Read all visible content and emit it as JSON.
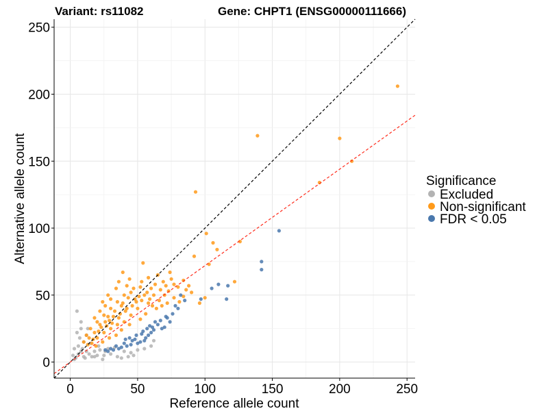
{
  "chart_data": {
    "type": "scatter",
    "title_left": "Variant: rs11082",
    "title_right": "Gene: CHPT1 (ENSG00000111666)",
    "xlabel": "Reference allele count",
    "ylabel": "Alternative allele count",
    "xlim": [
      -12,
      256
    ],
    "ylim": [
      -12,
      256
    ],
    "xticks": [
      0,
      50,
      100,
      150,
      200,
      250
    ],
    "yticks": [
      0,
      50,
      100,
      150,
      200,
      250
    ],
    "grid": true,
    "legend": {
      "title": "Significance",
      "position": "right",
      "entries": [
        {
          "label": "Excluded",
          "color": "#b3b3b3"
        },
        {
          "label": "Non-significant",
          "color": "#ff9a1a"
        },
        {
          "label": "FDR < 0.05",
          "color": "#4a78ad"
        }
      ]
    },
    "reference_lines": [
      {
        "name": "identity",
        "slope": 1.0,
        "intercept": 0,
        "color": "#000000",
        "dash": "dashed"
      },
      {
        "name": "fit",
        "slope": 0.72,
        "intercept": 0,
        "color": "#ff2a1a",
        "dash": "dashed"
      }
    ],
    "series": [
      {
        "name": "Excluded",
        "color": "#b3b3b3",
        "points": [
          [
            5,
            38
          ],
          [
            8,
            8
          ],
          [
            4,
            3
          ],
          [
            6,
            6
          ],
          [
            3,
            2
          ],
          [
            10,
            4
          ],
          [
            2,
            5
          ],
          [
            12,
            20
          ],
          [
            8,
            25
          ],
          [
            14,
            6
          ],
          [
            20,
            5
          ],
          [
            25,
            5
          ],
          [
            30,
            6
          ],
          [
            35,
            4
          ],
          [
            40,
            8
          ],
          [
            45,
            7
          ],
          [
            50,
            9
          ],
          [
            18,
            8
          ],
          [
            22,
            9
          ],
          [
            10,
            15
          ],
          [
            15,
            14
          ],
          [
            6,
            12
          ],
          [
            9,
            10
          ],
          [
            28,
            10
          ],
          [
            33,
            11
          ],
          [
            11,
            3
          ],
          [
            16,
            4
          ],
          [
            7,
            18
          ],
          [
            13,
            25
          ],
          [
            24,
            2
          ],
          [
            38,
            3
          ],
          [
            43,
            4
          ],
          [
            55,
            10
          ],
          [
            60,
            12
          ],
          [
            62,
            16
          ],
          [
            5,
            22
          ],
          [
            8,
            30
          ],
          [
            12,
            8
          ],
          [
            18,
            4
          ],
          [
            3,
            10
          ],
          [
            26,
            8
          ],
          [
            21,
            12
          ],
          [
            47,
            5
          ]
        ]
      },
      {
        "name": "Non-significant",
        "color": "#ff9a1a",
        "points": [
          [
            243,
            206
          ],
          [
            200,
            167
          ],
          [
            209,
            150
          ],
          [
            139,
            169
          ],
          [
            185,
            134
          ],
          [
            93,
            127
          ],
          [
            126,
            90
          ],
          [
            101,
            96
          ],
          [
            92,
            79
          ],
          [
            106,
            89
          ],
          [
            109,
            84
          ],
          [
            103,
            73
          ],
          [
            54,
            74
          ],
          [
            84,
            49
          ],
          [
            122,
            60
          ],
          [
            44,
            62
          ],
          [
            39,
            67
          ],
          [
            65,
            65
          ],
          [
            60,
            55
          ],
          [
            42,
            57
          ],
          [
            74,
            67
          ],
          [
            63,
            58
          ],
          [
            52,
            56
          ],
          [
            45,
            52
          ],
          [
            40,
            50
          ],
          [
            35,
            45
          ],
          [
            30,
            40
          ],
          [
            25,
            35
          ],
          [
            20,
            30
          ],
          [
            15,
            25
          ],
          [
            12,
            20
          ],
          [
            10,
            15
          ],
          [
            38,
            42
          ],
          [
            48,
            47
          ],
          [
            28,
            34
          ],
          [
            22,
            28
          ],
          [
            18,
            22
          ],
          [
            33,
            38
          ],
          [
            55,
            50
          ],
          [
            58,
            44
          ],
          [
            70,
            50
          ],
          [
            68,
            42
          ],
          [
            50,
            40
          ],
          [
            45,
            35
          ],
          [
            40,
            30
          ],
          [
            35,
            28
          ],
          [
            30,
            25
          ],
          [
            25,
            22
          ],
          [
            20,
            18
          ],
          [
            16,
            14
          ],
          [
            14,
            18
          ],
          [
            26,
            30
          ],
          [
            32,
            34
          ],
          [
            36,
            33
          ],
          [
            42,
            40
          ],
          [
            46,
            42
          ],
          [
            53,
            46
          ],
          [
            57,
            52
          ],
          [
            62,
            50
          ],
          [
            66,
            46
          ],
          [
            72,
            44
          ],
          [
            77,
            48
          ],
          [
            81,
            45
          ],
          [
            86,
            54
          ],
          [
            88,
            57
          ],
          [
            77,
            58
          ],
          [
            73,
            53
          ],
          [
            69,
            60
          ],
          [
            64,
            40
          ],
          [
            56,
            36
          ],
          [
            52,
            32
          ],
          [
            44,
            28
          ],
          [
            38,
            24
          ],
          [
            34,
            20
          ],
          [
            29,
            18
          ],
          [
            24,
            15
          ],
          [
            19,
            12
          ],
          [
            17,
            17
          ],
          [
            13,
            13
          ],
          [
            21,
            23
          ],
          [
            27,
            27
          ],
          [
            31,
            29
          ],
          [
            37,
            36
          ],
          [
            41,
            38
          ],
          [
            49,
            45
          ],
          [
            51,
            49
          ],
          [
            59,
            47
          ],
          [
            61,
            42
          ],
          [
            67,
            54
          ],
          [
            71,
            57
          ],
          [
            75,
            62
          ],
          [
            80,
            56
          ],
          [
            84,
            61
          ],
          [
            90,
            52
          ],
          [
            96,
            44
          ],
          [
            100,
            48
          ],
          [
            30,
            47
          ],
          [
            26,
            42
          ],
          [
            22,
            38
          ],
          [
            18,
            33
          ],
          [
            28,
            50
          ],
          [
            34,
            55
          ],
          [
            24,
            45
          ],
          [
            36,
            60
          ],
          [
            43,
            48
          ],
          [
            47,
            55
          ],
          [
            53,
            60
          ],
          [
            58,
            63
          ],
          [
            29,
            31
          ],
          [
            23,
            26
          ],
          [
            39,
            44
          ]
        ]
      },
      {
        "name": "FDR < 0.05",
        "color": "#4a78ad",
        "points": [
          [
            155,
            98
          ],
          [
            142,
            75
          ],
          [
            142,
            69
          ],
          [
            117,
            57
          ],
          [
            110,
            58
          ],
          [
            105,
            55
          ],
          [
            116,
            47
          ],
          [
            97,
            47
          ],
          [
            82,
            50
          ],
          [
            80,
            40
          ],
          [
            74,
            30
          ],
          [
            70,
            26
          ],
          [
            68,
            25
          ],
          [
            65,
            28
          ],
          [
            62,
            24
          ],
          [
            60,
            22
          ],
          [
            58,
            20
          ],
          [
            56,
            18
          ],
          [
            55,
            16
          ],
          [
            52,
            15
          ],
          [
            50,
            14
          ],
          [
            48,
            17
          ],
          [
            45,
            13
          ],
          [
            42,
            12
          ],
          [
            40,
            14
          ],
          [
            38,
            11
          ],
          [
            36,
            10
          ],
          [
            34,
            12
          ],
          [
            32,
            9
          ],
          [
            30,
            10
          ],
          [
            28,
            8
          ],
          [
            26,
            9
          ],
          [
            67,
            31
          ],
          [
            72,
            33
          ],
          [
            76,
            36
          ],
          [
            63,
            30
          ],
          [
            59,
            27
          ],
          [
            54,
            23
          ],
          [
            49,
            20
          ],
          [
            44,
            18
          ],
          [
            46,
            16
          ],
          [
            41,
            17
          ],
          [
            61,
            26
          ],
          [
            57,
            25
          ],
          [
            53,
            21
          ],
          [
            71,
            34
          ],
          [
            78,
            42
          ],
          [
            85,
            46
          ]
        ]
      }
    ]
  }
}
